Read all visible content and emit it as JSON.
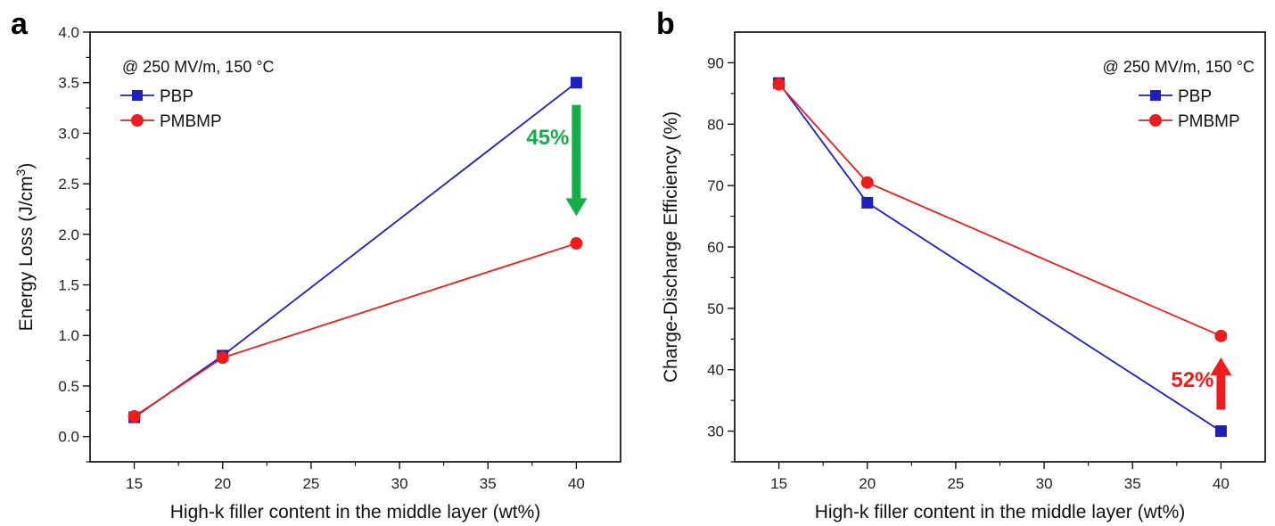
{
  "chart_data": [
    {
      "type": "line",
      "panel_label": "a",
      "x": [
        15,
        20,
        40
      ],
      "series": [
        {
          "name": "PBP",
          "values": [
            0.19,
            0.8,
            3.5
          ],
          "color": "#1f1fbf",
          "marker": "square"
        },
        {
          "name": "PMBMP",
          "values": [
            0.2,
            0.78,
            1.91
          ],
          "color": "#ee1c1c",
          "marker": "circle"
        }
      ],
      "xlabel": "High-k filler content in the middle layer (wt%)",
      "ylabel": "Energy Loss (J/cm",
      "ylabel_sup": "3",
      "ylabel_end": ")",
      "xlim": [
        12.5,
        42.5
      ],
      "ylim": [
        -0.25,
        4.0
      ],
      "xticks": [
        15,
        20,
        25,
        30,
        35,
        40
      ],
      "yticks": [
        0.0,
        0.5,
        1.0,
        1.5,
        2.0,
        2.5,
        3.0,
        3.5,
        4.0
      ],
      "ytick_labels": [
        "0.0",
        "0.5",
        "1.0",
        "1.5",
        "2.0",
        "2.5",
        "3.0",
        "3.5",
        "4.0"
      ],
      "condition": "@ 250 MV/m, 150 °C",
      "legend_position": "top-left",
      "grid": false,
      "annotation": {
        "text": "45%",
        "direction": "down",
        "color": "#13ad4a",
        "x": 40,
        "y_from": 3.28,
        "y_to": 2.18
      }
    },
    {
      "type": "line",
      "panel_label": "b",
      "x": [
        15,
        20,
        40
      ],
      "series": [
        {
          "name": "PBP",
          "values": [
            86.7,
            67.2,
            30.0
          ],
          "color": "#1f1fbf",
          "marker": "square"
        },
        {
          "name": "PMBMP",
          "values": [
            86.5,
            70.5,
            45.5
          ],
          "color": "#ee1c1c",
          "marker": "circle"
        }
      ],
      "xlabel": "High-k filler content in the middle layer (wt%)",
      "ylabel": "Charge-Discharge Efficiency (%)",
      "xlim": [
        12.5,
        42.5
      ],
      "ylim": [
        25,
        95
      ],
      "xticks": [
        15,
        20,
        25,
        30,
        35,
        40
      ],
      "yticks": [
        30,
        40,
        50,
        60,
        70,
        80,
        90
      ],
      "ytick_labels": [
        "30",
        "40",
        "50",
        "60",
        "70",
        "80",
        "90"
      ],
      "condition": "@ 250 MV/m, 150 °C",
      "legend_position": "top-right",
      "grid": false,
      "annotation": {
        "text": "52%",
        "direction": "up",
        "color": "#ee1c1c",
        "x": 40,
        "y_from": 33.5,
        "y_to": 42.0
      }
    }
  ]
}
